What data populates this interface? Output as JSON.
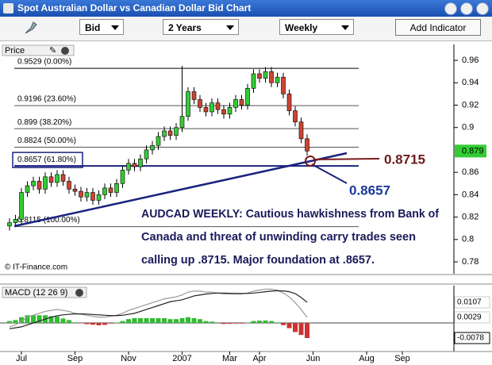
{
  "window": {
    "title": "Spot Australian Dollar vs Canadian Dollar Bid Chart",
    "controls": {
      "price_type": "Bid",
      "period": "2 Years",
      "interval": "Weekly",
      "add_button": "Add Indicator"
    }
  },
  "chart_data": [
    {
      "type": "candlestick",
      "title": "Price",
      "source": "© IT-Finance.com",
      "up_color": "#33cc33",
      "down_color": "#cc4433",
      "open": [
        0.812,
        0.815,
        0.818,
        0.842,
        0.848,
        0.852,
        0.845,
        0.856,
        0.851,
        0.858,
        0.852,
        0.845,
        0.843,
        0.838,
        0.842,
        0.835,
        0.84,
        0.846,
        0.842,
        0.85,
        0.862,
        0.868,
        0.865,
        0.872,
        0.88,
        0.884,
        0.892,
        0.897,
        0.893,
        0.9,
        0.91,
        0.932,
        0.925,
        0.918,
        0.914,
        0.922,
        0.916,
        0.912,
        0.918,
        0.925,
        0.92,
        0.935,
        0.948,
        0.944,
        0.95,
        0.94,
        0.945,
        0.93,
        0.915,
        0.905,
        0.89
      ],
      "high": [
        0.819,
        0.822,
        0.846,
        0.852,
        0.856,
        0.856,
        0.86,
        0.86,
        0.862,
        0.862,
        0.856,
        0.849,
        0.847,
        0.846,
        0.846,
        0.844,
        0.85,
        0.85,
        0.854,
        0.866,
        0.872,
        0.872,
        0.876,
        0.884,
        0.888,
        0.896,
        0.901,
        0.901,
        0.904,
        0.955,
        0.936,
        0.936,
        0.929,
        0.922,
        0.926,
        0.926,
        0.92,
        0.922,
        0.929,
        0.929,
        0.939,
        0.952,
        0.952,
        0.954,
        0.954,
        0.949,
        0.949,
        0.934,
        0.919,
        0.909,
        0.894
      ],
      "low": [
        0.808,
        0.811,
        0.814,
        0.838,
        0.844,
        0.841,
        0.841,
        0.847,
        0.847,
        0.848,
        0.841,
        0.839,
        0.834,
        0.834,
        0.831,
        0.831,
        0.836,
        0.838,
        0.838,
        0.846,
        0.858,
        0.861,
        0.861,
        0.868,
        0.876,
        0.88,
        0.888,
        0.889,
        0.889,
        0.896,
        0.906,
        0.921,
        0.914,
        0.91,
        0.91,
        0.912,
        0.908,
        0.908,
        0.914,
        0.916,
        0.916,
        0.931,
        0.94,
        0.94,
        0.936,
        0.936,
        0.926,
        0.911,
        0.901,
        0.886,
        0.875
      ],
      "close": [
        0.815,
        0.818,
        0.842,
        0.848,
        0.852,
        0.845,
        0.856,
        0.851,
        0.858,
        0.852,
        0.845,
        0.843,
        0.838,
        0.842,
        0.835,
        0.84,
        0.846,
        0.842,
        0.85,
        0.862,
        0.868,
        0.865,
        0.872,
        0.88,
        0.884,
        0.892,
        0.897,
        0.893,
        0.9,
        0.91,
        0.932,
        0.925,
        0.918,
        0.914,
        0.922,
        0.916,
        0.912,
        0.918,
        0.925,
        0.92,
        0.935,
        0.948,
        0.944,
        0.95,
        0.94,
        0.945,
        0.93,
        0.915,
        0.905,
        0.89,
        0.879
      ],
      "ylim": [
        0.7694,
        0.9643
      ],
      "yticks": [
        0.96,
        0.94,
        0.92,
        0.9,
        0.86,
        0.84,
        0.82,
        0.8,
        0.78
      ],
      "fib_levels": [
        {
          "value": 0.9529,
          "label": "0.9529 (0.00%)",
          "color": "#000000"
        },
        {
          "value": 0.9196,
          "label": "0.9196 (23.60%)",
          "color": "#555555"
        },
        {
          "value": 0.899,
          "label": "0.899 (38.20%)",
          "color": "#555555"
        },
        {
          "value": 0.8824,
          "label": "0.8824 (50.00%)",
          "color": "#555555"
        },
        {
          "value": 0.8657,
          "label": "0.8657 (61.80%)",
          "color": "#1a237e",
          "boxed": true
        },
        {
          "value": 0.8115,
          "label": "0.8115 (100.00%)",
          "color": "#555555"
        }
      ],
      "annotations": [
        "0.8715",
        "0.8657"
      ],
      "note_lines": [
        "AUDCAD WEEKLY: Cautious hawkishness from Bank of",
        "Canada and threat of unwinding carry trades seen",
        "calling up .8715. Major foundation at .8657."
      ]
    },
    {
      "type": "macd",
      "title": "MACD (12 26 9)",
      "categories": [
        null,
        null,
        "Jul",
        null,
        null,
        null,
        null,
        null,
        null,
        null,
        null,
        "Sep",
        null,
        null,
        null,
        null,
        null,
        null,
        null,
        null,
        "Nov",
        null,
        null,
        null,
        null,
        null,
        null,
        null,
        null,
        "2007",
        null,
        null,
        null,
        null,
        null,
        null,
        null,
        "Mar",
        null,
        null,
        null,
        null,
        "Apr",
        null,
        null,
        null,
        null,
        null,
        null,
        null,
        null,
        "Jun",
        null,
        null,
        null,
        null,
        null,
        null,
        null,
        null,
        "Aug",
        null,
        null,
        null,
        null,
        null,
        "Sep",
        null,
        null,
        null,
        null,
        null,
        null,
        null
      ],
      "ylim": [
        -0.0156,
        0.0185
      ],
      "series": [
        {
          "kind": "bar",
          "color": "#33bb33",
          "down_color": "#cc3333",
          "values": [
            0.001,
            0.0015,
            0.003,
            0.004,
            0.004,
            0.004,
            0.004,
            0.0035,
            0.0033,
            0.0023,
            0.0015,
            0.0003,
            -0.0002,
            -0.0006,
            -0.0009,
            -0.0012,
            -0.001,
            -0.0003,
            0.0002,
            0.001,
            0.002,
            0.0025,
            0.0025,
            0.0025,
            0.0025,
            0.0025,
            0.0025,
            0.002,
            0.002,
            0.0025,
            0.003,
            0.0025,
            0.002,
            0.001,
            0.0007,
            0,
            -0.0005,
            -0.0004,
            -0.0003,
            -0.0003,
            0.0002,
            0.001,
            0.0012,
            0.0013,
            0.001,
            0.0003,
            -0.0011,
            -0.0027,
            -0.0047,
            -0.0062,
            -0.0078,
            null,
            null,
            null,
            null,
            null,
            null,
            null,
            null,
            null,
            null,
            null,
            null,
            null,
            null,
            null,
            null,
            null,
            null,
            null,
            null,
            null,
            null,
            null
          ]
        },
        {
          "kind": "line",
          "color": "#999999",
          "values": [
            -0.002,
            -0.001,
            0.001,
            0.003,
            0.004,
            0.005,
            0.006,
            0.0065,
            0.007,
            0.0065,
            0.006,
            0.005,
            0.0045,
            0.004,
            0.0035,
            0.003,
            0.003,
            0.0035,
            0.004,
            0.005,
            0.0065,
            0.0075,
            0.0085,
            0.0095,
            0.0105,
            0.0115,
            0.0125,
            0.013,
            0.0135,
            0.0145,
            0.016,
            0.0165,
            0.0165,
            0.016,
            0.016,
            0.0155,
            0.015,
            0.015,
            0.015,
            0.015,
            0.0155,
            0.0165,
            0.017,
            0.0175,
            0.0175,
            0.017,
            0.0155,
            0.0135,
            0.0105,
            0.007,
            0.0029,
            null,
            null,
            null,
            null,
            null,
            null,
            null,
            null,
            null,
            null,
            null,
            null,
            null,
            null,
            null,
            null,
            null,
            null,
            null,
            null,
            null,
            null,
            null
          ]
        },
        {
          "kind": "line",
          "color": "#222222",
          "values": [
            -0.003,
            -0.0025,
            -0.002,
            -0.001,
            0,
            0.001,
            0.002,
            0.003,
            0.0037,
            0.0042,
            0.0045,
            0.0047,
            0.0047,
            0.0046,
            0.0044,
            0.0042,
            0.004,
            0.0038,
            0.0038,
            0.004,
            0.0045,
            0.005,
            0.006,
            0.007,
            0.008,
            0.009,
            0.01,
            0.011,
            0.0115,
            0.012,
            0.013,
            0.014,
            0.0145,
            0.015,
            0.0153,
            0.0155,
            0.0155,
            0.0154,
            0.0153,
            0.0153,
            0.0153,
            0.0155,
            0.0158,
            0.0162,
            0.0165,
            0.0167,
            0.0166,
            0.0162,
            0.0152,
            0.0132,
            0.0107,
            null,
            null,
            null,
            null,
            null,
            null,
            null,
            null,
            null,
            null,
            null,
            null,
            null,
            null,
            null,
            null,
            null,
            null,
            null,
            null,
            null,
            null,
            null
          ]
        }
      ]
    }
  ]
}
